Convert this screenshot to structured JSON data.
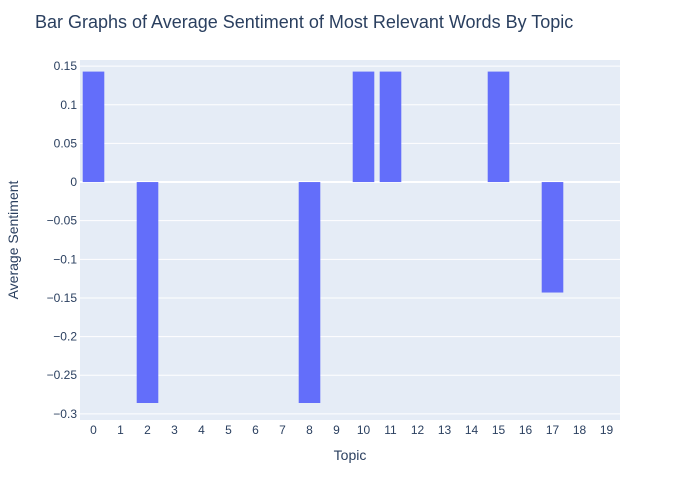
{
  "chart_data": {
    "type": "bar",
    "title": "Bar Graphs of Average Sentiment of Most Relevant Words By Topic",
    "xlabel": "Topic",
    "ylabel": "Average Sentiment",
    "categories": [
      "0",
      "1",
      "2",
      "3",
      "4",
      "5",
      "6",
      "7",
      "8",
      "9",
      "10",
      "11",
      "12",
      "13",
      "14",
      "15",
      "16",
      "17",
      "18",
      "19"
    ],
    "values": [
      0.143,
      0,
      -0.286,
      0,
      0,
      0,
      0,
      0,
      -0.286,
      0,
      0.143,
      0.143,
      0,
      0,
      0,
      0.143,
      0,
      -0.143,
      0,
      0
    ],
    "ylim": [
      -0.308,
      0.158
    ],
    "yticks": [
      0.15,
      0.1,
      0.05,
      0,
      -0.05,
      -0.1,
      -0.15,
      -0.2,
      -0.25,
      -0.3
    ],
    "ytick_labels": [
      "0.15",
      "0.1",
      "0.05",
      "0",
      "−0.05",
      "−0.1",
      "−0.15",
      "−0.2",
      "−0.25",
      "−0.3"
    ],
    "grid": true,
    "bar_color": "#636efa",
    "plot_bg": "#e5ecf6"
  }
}
